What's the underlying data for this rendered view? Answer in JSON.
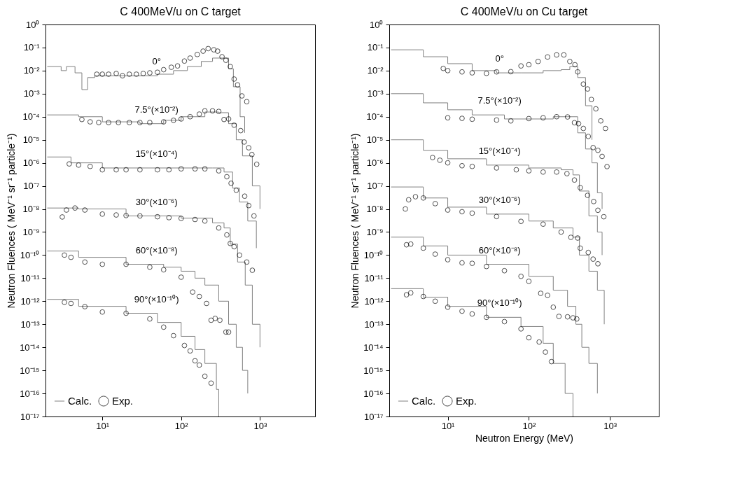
{
  "chart_data": [
    {
      "type": "step",
      "title": "C 400MeV/u on C target",
      "ylabel": "Neutron Fluences ( MeV⁻¹ sr⁻¹ particle⁻¹)",
      "log": "xy",
      "grid": false,
      "legend": "bottom left",
      "xlim": [
        1.9,
        5000
      ],
      "ylim": [
        1e-17,
        1
      ],
      "xticks": [
        {
          "value": 10,
          "label": "10¹"
        },
        {
          "value": 100,
          "label": "10²"
        },
        {
          "value": 1000,
          "label": "10³"
        }
      ],
      "yticks": [
        {
          "value": 1,
          "label": "10⁰"
        },
        {
          "value": 0.1,
          "label": "10⁻¹"
        },
        {
          "value": 0.01,
          "label": "10⁻²"
        },
        {
          "value": 0.001,
          "label": "10⁻³"
        },
        {
          "value": 0.0001,
          "label": "10⁻⁴"
        },
        {
          "value": 1e-05,
          "label": "10⁻⁵"
        },
        {
          "value": 1e-06,
          "label": "10⁻⁶"
        },
        {
          "value": 1e-07,
          "label": "10⁻⁷"
        },
        {
          "value": 1e-08,
          "label": "10⁻⁸"
        },
        {
          "value": 1e-09,
          "label": "10⁻⁹"
        },
        {
          "value": 1e-10,
          "label": "10⁻¹⁰"
        },
        {
          "value": 1e-11,
          "label": "10⁻¹¹"
        },
        {
          "value": 1e-12,
          "label": "10⁻¹²"
        },
        {
          "value": 1e-13,
          "label": "10⁻¹³"
        },
        {
          "value": 1e-14,
          "label": "10⁻¹⁴"
        },
        {
          "value": 1e-15,
          "label": "10⁻¹⁵"
        },
        {
          "value": 1e-16,
          "label": "10⁻¹⁶"
        },
        {
          "value": 1e-17,
          "label": "10⁻¹⁷"
        }
      ],
      "annotations": [
        "0°",
        "7.5°(×10⁻²)",
        "15°(×10⁻⁴)",
        "30°(×10⁻⁶)",
        "60°(×10⁻⁸)",
        "90°(×10⁻¹⁰)"
      ],
      "series": [
        {
          "name": "Calc.",
          "color": "#808080",
          "x": [
            2,
            3,
            3.5,
            4.5,
            5.5,
            6.5,
            8,
            12,
            20,
            35,
            50,
            80,
            120,
            180,
            250,
            330,
            400,
            460,
            560,
            640
          ],
          "values": [
            0.015,
            0.01,
            0.015,
            0.008,
            0.0015,
            0.005,
            0.006,
            0.006,
            0.006,
            0.006,
            0.007,
            0.01,
            0.015,
            0.025,
            0.035,
            0.035,
            0.012,
            0.002,
            0.0001,
            2e-05
          ]
        },
        {
          "color": "#808080",
          "x": [
            2,
            5,
            10,
            30,
            60,
            100,
            200,
            300,
            400,
            500,
            600,
            800,
            1000
          ],
          "values": [
            0.00012,
            0.0001,
            6e-05,
            5e-05,
            7e-05,
            0.0001,
            0.00016,
            0.00015,
            5e-05,
            1e-05,
            2e-06,
            1e-07,
            1e-08
          ]
        },
        {
          "color": "#808080",
          "x": [
            2,
            4,
            10,
            100,
            250,
            350,
            450,
            550,
            700,
            900
          ],
          "values": [
            1.8e-06,
            1e-06,
            6e-07,
            6e-07,
            6e-07,
            4e-07,
            8e-08,
            2e-08,
            3e-09,
            2e-10
          ]
        },
        {
          "color": "#808080",
          "x": [
            2,
            5,
            20,
            100,
            250,
            350,
            420,
            520,
            650,
            800,
            1000
          ],
          "values": [
            1.1e-08,
            1e-08,
            5e-09,
            4e-09,
            2.5e-09,
            1.5e-09,
            3e-10,
            5e-11,
            5e-12,
            1e-13,
            1e-14
          ]
        },
        {
          "color": "#808080",
          "x": [
            2,
            5,
            20,
            60,
            100,
            150,
            200,
            300,
            400,
            500,
            600,
            700
          ],
          "values": [
            1.5e-10,
            8e-11,
            4e-11,
            3e-11,
            2e-11,
            1e-11,
            5e-12,
            1e-12,
            1e-13,
            1e-14,
            1e-15,
            1e-16
          ]
        },
        {
          "color": "#808080",
          "x": [
            2,
            5,
            20,
            50,
            100,
            150,
            200,
            280,
            300
          ],
          "values": [
            1.2e-12,
            6e-13,
            3e-13,
            1.2e-13,
            3e-14,
            8e-15,
            2e-15,
            1.5e-16,
            1e-17
          ]
        },
        {
          "name": "Exp.",
          "type": "scatter",
          "color": "#000000",
          "x": [
            8.5,
            10,
            12,
            15,
            18,
            22,
            27,
            33,
            40,
            50,
            60,
            75,
            90,
            110,
            130,
            160,
            190,
            220,
            260,
            290,
            330,
            370,
            420,
            470,
            520,
            590,
            680
          ],
          "values": [
            0.007,
            0.007,
            0.007,
            0.0075,
            0.006,
            0.007,
            0.007,
            0.0075,
            0.008,
            0.0085,
            0.011,
            0.014,
            0.016,
            0.026,
            0.035,
            0.05,
            0.07,
            0.09,
            0.08,
            0.07,
            0.04,
            0.028,
            0.015,
            0.0043,
            0.0024,
            0.0008,
            0.00045
          ]
        },
        {
          "type": "scatter",
          "color": "#000000",
          "x": [
            5.5,
            7,
            9,
            12,
            16,
            22,
            30,
            40,
            60,
            80,
            100,
            130,
            170,
            200,
            250,
            300,
            350,
            400,
            470,
            570,
            630,
            720,
            790,
            910
          ],
          "values": [
            7.6e-05,
            6e-05,
            5.6e-05,
            5.6e-05,
            5.6e-05,
            5.6e-05,
            5.6e-05,
            5.6e-05,
            6e-05,
            7e-05,
            8e-05,
            0.0001,
            0.00013,
            0.00018,
            0.00018,
            0.00017,
            7.6e-05,
            8e-05,
            4.3e-05,
            2.5e-05,
            8e-06,
            4.5e-06,
            2.3e-06,
            8.7e-07
          ]
        },
        {
          "type": "scatter",
          "color": "#000000",
          "x": [
            3.8,
            5,
            7,
            10,
            15,
            20,
            30,
            50,
            70,
            100,
            150,
            200,
            300,
            380,
            430,
            500,
            640,
            720,
            840
          ],
          "values": [
            9e-07,
            8e-07,
            7e-07,
            5e-07,
            5e-07,
            5e-07,
            5e-07,
            5e-07,
            5e-07,
            5.5e-07,
            5.5e-07,
            5.5e-07,
            4.5e-07,
            2.5e-07,
            1.3e-07,
            6.5e-08,
            3.6e-08,
            1.4e-08,
            5e-09
          ]
        },
        {
          "type": "scatter",
          "color": "#000000",
          "x": [
            3.1,
            3.5,
            4.5,
            6,
            10,
            15,
            20,
            30,
            50,
            70,
            100,
            150,
            200,
            300,
            380,
            420,
            470,
            550,
            680,
            800
          ],
          "values": [
            4.5e-09,
            9e-09,
            1.1e-08,
            9e-09,
            6e-09,
            5.5e-09,
            5.2e-09,
            5e-09,
            4.6e-09,
            4.2e-09,
            3.9e-09,
            3.5e-09,
            3e-09,
            1.5e-09,
            7.5e-10,
            3.2e-10,
            2.3e-10,
            1e-10,
            5e-11,
            2.2e-11
          ]
        },
        {
          "type": "scatter",
          "color": "#000000",
          "x": [
            3.3,
            4,
            6,
            10,
            20,
            40,
            60,
            100,
            140,
            170,
            210,
            240,
            270,
            310,
            370,
            400
          ],
          "values": [
            1e-10,
            8e-11,
            5e-11,
            4e-11,
            4e-11,
            3e-11,
            2.3e-11,
            1.1e-11,
            2.5e-12,
            1.6e-12,
            8e-13,
            1.5e-13,
            1.8e-13,
            1.5e-13,
            4.6e-14,
            4.6e-14
          ]
        },
        {
          "type": "scatter",
          "color": "#000000",
          "x": [
            3.3,
            4,
            6,
            10,
            20,
            40,
            60,
            80,
            110,
            130,
            150,
            170,
            200,
            240
          ],
          "values": [
            9e-13,
            8e-13,
            5.8e-13,
            3.4e-13,
            3e-13,
            1.7e-13,
            7.5e-14,
            3.2e-14,
            1.2e-14,
            7e-15,
            2.6e-15,
            1.7e-15,
            5.6e-16,
            2.8e-16
          ]
        }
      ]
    },
    {
      "type": "step",
      "title": "C 400MeV/u on Cu target",
      "xlabel": "Neutron Energy (MeV)",
      "ylabel": "Neutron Fluences ( MeV⁻¹ sr⁻¹ particle⁻¹)",
      "log": "xy",
      "grid": false,
      "legend": "bottom left",
      "xlim": [
        1.9,
        4000
      ],
      "ylim": [
        1e-17,
        1
      ],
      "xticks": [
        {
          "value": 10,
          "label": "10¹"
        },
        {
          "value": 100,
          "label": "10²"
        },
        {
          "value": 1000,
          "label": "10³"
        }
      ],
      "yticks": [
        {
          "value": 1,
          "label": "10⁰"
        },
        {
          "value": 0.1,
          "label": "10⁻¹"
        },
        {
          "value": 0.01,
          "label": "10⁻²"
        },
        {
          "value": 0.001,
          "label": "10⁻³"
        },
        {
          "value": 0.0001,
          "label": "10⁻⁴"
        },
        {
          "value": 1e-05,
          "label": "10⁻⁵"
        },
        {
          "value": 1e-06,
          "label": "10⁻⁶"
        },
        {
          "value": 1e-07,
          "label": "10⁻⁷"
        },
        {
          "value": 1e-08,
          "label": "10⁻⁸"
        },
        {
          "value": 1e-09,
          "label": "10⁻⁹"
        },
        {
          "value": 1e-10,
          "label": "10⁻¹⁰"
        },
        {
          "value": 1e-11,
          "label": "10⁻¹¹"
        },
        {
          "value": 1e-12,
          "label": "10⁻¹²"
        },
        {
          "value": 1e-13,
          "label": "10⁻¹³"
        },
        {
          "value": 1e-14,
          "label": "10⁻¹⁴"
        },
        {
          "value": 1e-15,
          "label": "10⁻¹⁵"
        },
        {
          "value": 1e-16,
          "label": "10⁻¹⁶"
        },
        {
          "value": 1e-17,
          "label": "10⁻¹⁷"
        }
      ],
      "annotations": [
        "0°",
        "7.5°(×10⁻²)",
        "15°(×10⁻⁴)",
        "30°(×10⁻⁶)",
        "60°(×10⁻⁸)",
        "90°(×10⁻¹⁰)"
      ],
      "series": [
        {
          "name": "Calc.",
          "color": "#808080",
          "x": [
            2,
            5,
            10,
            20,
            40,
            80,
            150,
            250,
            320,
            400,
            500,
            600
          ],
          "values": [
            0.08,
            0.04,
            0.02,
            0.01,
            0.008,
            0.008,
            0.01,
            0.011,
            0.015,
            0.005,
            0.0003,
            1e-05
          ]
        },
        {
          "color": "#808080",
          "x": [
            2,
            5,
            10,
            20,
            50,
            100,
            200,
            300,
            400,
            500,
            600,
            700,
            800
          ],
          "values": [
            0.001,
            0.0004,
            0.0002,
            0.00012,
            8e-05,
            8e-05,
            0.0001,
            0.0001,
            2e-05,
            4e-06,
            1e-06,
            5e-08,
            1e-08
          ]
        },
        {
          "color": "#808080",
          "x": [
            2,
            5,
            10,
            30,
            100,
            250,
            350,
            420,
            550,
            700,
            800
          ],
          "values": [
            1e-05,
            3.5e-06,
            1.5e-06,
            8e-07,
            6e-07,
            5e-07,
            3e-07,
            6e-08,
            5e-09,
            1e-09,
            1e-10
          ]
        },
        {
          "color": "#808080",
          "x": [
            2,
            5,
            10,
            30,
            100,
            200,
            350,
            420,
            550,
            700,
            850
          ],
          "values": [
            9e-08,
            3e-08,
            1.2e-08,
            6e-09,
            3e-09,
            1.5e-09,
            6e-10,
            1e-10,
            2e-11,
            3e-12,
            1e-13
          ]
        },
        {
          "color": "#808080",
          "x": [
            2,
            5,
            10,
            30,
            100,
            200,
            300,
            380,
            450,
            550,
            700
          ],
          "values": [
            6e-10,
            2.5e-10,
            1e-10,
            4e-11,
            1.2e-11,
            3e-12,
            6e-13,
            1e-13,
            1e-14,
            2e-15,
            1e-16
          ]
        },
        {
          "color": "#808080",
          "x": [
            2,
            5,
            10,
            30,
            80,
            150,
            200,
            280,
            350
          ],
          "values": [
            3.5e-12,
            1.5e-12,
            6e-13,
            2e-13,
            8e-14,
            1.5e-14,
            2e-15,
            1e-16,
            1e-17
          ]
        },
        {
          "name": "Exp.",
          "type": "scatter",
          "color": "#000000",
          "x": [
            8.8,
            10,
            15,
            20,
            30,
            40,
            60,
            80,
            100,
            130,
            170,
            220,
            270,
            320,
            370,
            400,
            470,
            530,
            590,
            670,
            770,
            880
          ],
          "values": [
            0.0125,
            0.01,
            0.0088,
            0.008,
            0.0076,
            0.0088,
            0.009,
            0.016,
            0.018,
            0.025,
            0.039,
            0.048,
            0.048,
            0.025,
            0.018,
            0.0088,
            0.0026,
            0.0016,
            0.00056,
            0.00022,
            6.6e-05,
            3.1e-05
          ]
        },
        {
          "type": "scatter",
          "color": "#000000",
          "x": [
            10,
            15,
            20,
            40,
            60,
            100,
            150,
            220,
            300,
            365,
            410,
            470,
            540,
            620,
            710,
            800,
            920
          ],
          "values": [
            9e-05,
            8.5e-05,
            7.8e-05,
            7.2e-05,
            6.6e-05,
            8.3e-05,
            9e-05,
            0.0001,
            9.8e-05,
            5.5e-05,
            5e-05,
            3.1e-05,
            1.4e-05,
            4.6e-06,
            3.5e-06,
            1.9e-06,
            6.9e-07
          ]
        },
        {
          "type": "scatter",
          "color": "#000000",
          "x": [
            6.5,
            8,
            10,
            15,
            20,
            40,
            70,
            100,
            150,
            220,
            295,
            365,
            430,
            530,
            630,
            710,
            840
          ],
          "values": [
            1.7e-06,
            1.3e-06,
            1e-06,
            7.5e-07,
            7e-07,
            6e-07,
            5e-07,
            4.5e-07,
            4e-07,
            4e-07,
            3.4e-07,
            1.8e-07,
            8.4e-08,
            3.9e-08,
            2.1e-08,
            8.8e-09,
            4.6e-09
          ]
        },
        {
          "type": "scatter",
          "color": "#000000",
          "x": [
            3,
            3.3,
            4,
            5,
            7,
            10,
            15,
            20,
            40,
            80,
            150,
            250,
            330,
            400,
            430,
            540,
            620,
            710
          ],
          "values": [
            1e-08,
            2.5e-08,
            3.4e-08,
            3e-08,
            1.7e-08,
            9e-09,
            7.6e-09,
            6.6e-09,
            4.7e-09,
            2.9e-09,
            2.2e-09,
            1e-09,
            5.9e-10,
            5.5e-10,
            2e-10,
            1.3e-10,
            6.7e-11,
            4.2e-11
          ]
        },
        {
          "type": "scatter",
          "color": "#000000",
          "x": [
            3.1,
            3.5,
            5,
            7,
            10,
            15,
            20,
            30,
            50,
            80,
            100,
            140,
            170,
            200,
            235,
            300,
            350,
            390
          ],
          "values": [
            2.8e-10,
            3e-10,
            2e-10,
            1.1e-10,
            6.3e-11,
            4.6e-11,
            4.4e-11,
            3.2e-11,
            2.1e-11,
            1.2e-11,
            7.3e-12,
            2.2e-12,
            1.8e-12,
            5.5e-13,
            2.2e-13,
            2.1e-13,
            1.9e-13,
            1.7e-13
          ]
        },
        {
          "type": "scatter",
          "color": "#000000",
          "x": [
            3.1,
            3.5,
            5,
            7,
            10,
            15,
            20,
            30,
            50,
            80,
            100,
            134,
            160,
            190
          ],
          "values": [
            1.9e-12,
            2.3e-12,
            1.6e-12,
            1e-12,
            5.5e-13,
            3.7e-13,
            2.8e-13,
            2e-13,
            1.3e-13,
            6.3e-14,
            2.6e-14,
            1.7e-14,
            6.2e-15,
            2.4e-15
          ]
        }
      ]
    }
  ]
}
